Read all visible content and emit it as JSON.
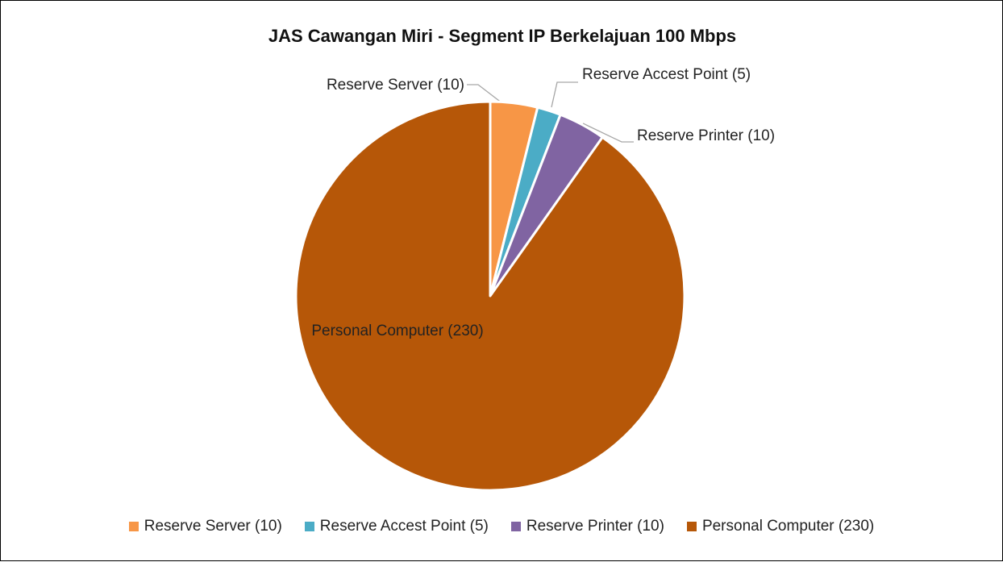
{
  "chart_data": {
    "type": "pie",
    "title": "JAS Cawangan Miri - Segment IP Berkelajuan 100 Mbps",
    "categories": [
      "Reserve Server (10)",
      "Reserve Accest Point (5)",
      "Reserve Printer (10)",
      "Personal Computer (230)"
    ],
    "values": [
      10,
      5,
      10,
      230
    ],
    "colors": [
      "#f79646",
      "#4bacc6",
      "#8064a2",
      "#b65708"
    ],
    "legend": "bottom"
  }
}
